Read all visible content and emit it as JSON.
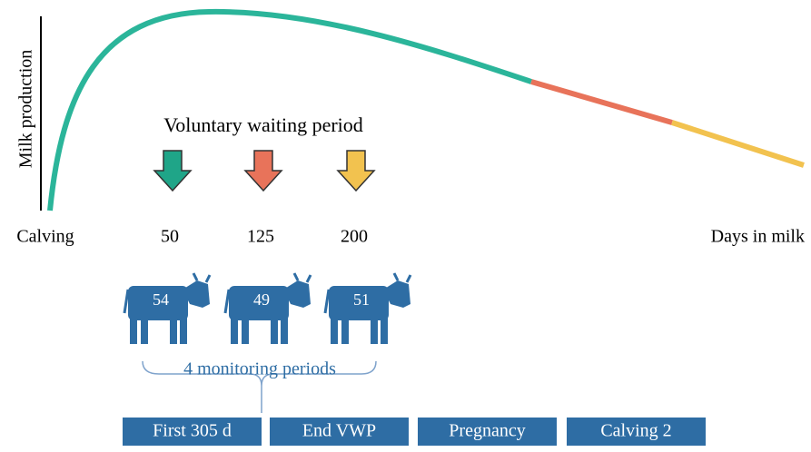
{
  "y_axis_label": "Milk production",
  "x_labels": [
    "Calving",
    "50",
    "125",
    "200",
    "Days in milk"
  ],
  "annotation": "Voluntary waiting period",
  "cows": [
    "54",
    "49",
    "51"
  ],
  "brace_label": "4 monitoring periods",
  "periods": [
    "First 305 d",
    "End VWP",
    "Pregnancy",
    "Calving 2"
  ]
}
